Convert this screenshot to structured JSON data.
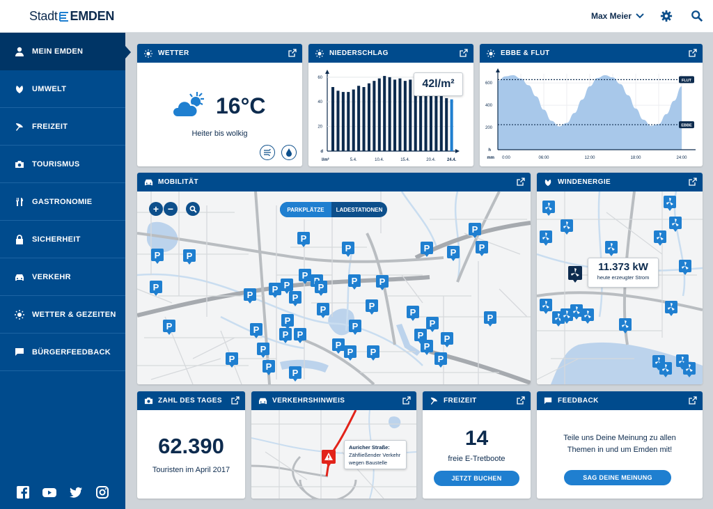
{
  "header": {
    "logo_stadt": "Stadt",
    "logo_emden": "EMDEN",
    "user_name": "Max Meier"
  },
  "sidebar": {
    "items": [
      {
        "label": "MEIN EMDEN",
        "icon": "person-icon",
        "active": true
      },
      {
        "label": "UMWELT",
        "icon": "leaf-icon"
      },
      {
        "label": "FREIZEIT",
        "icon": "leisure-icon"
      },
      {
        "label": "TOURISMUS",
        "icon": "camera-icon"
      },
      {
        "label": "GASTRONOMIE",
        "icon": "cutlery-icon"
      },
      {
        "label": "SICHERHEIT",
        "icon": "lock-icon"
      },
      {
        "label": "VERKEHR",
        "icon": "car-icon"
      },
      {
        "label": "WETTER & GEZEITEN",
        "icon": "sun-icon"
      },
      {
        "label": "BÜRGERFEEDBACK",
        "icon": "chat-icon"
      }
    ],
    "social": [
      "facebook-icon",
      "youtube-icon",
      "twitter-icon",
      "instagram-icon"
    ]
  },
  "weather": {
    "title": "WETTER",
    "temp": "16°C",
    "desc": "Heiter bis wolkig"
  },
  "precip": {
    "title": "NIEDERSCHLAG",
    "callout": "42l/m²",
    "ylabel": "l/m²"
  },
  "tides": {
    "title": "EBBE & FLUT",
    "flut": "FLUT",
    "ebbe": "EBBE",
    "ylabel": "h",
    "xlabel": "mm"
  },
  "mobility": {
    "title": "MOBILITÄT",
    "tab_parking": "PARKPLÄTZE",
    "tab_charging": "LADESTATIONEN",
    "zoom_in": "+",
    "zoom_out": "−"
  },
  "wind": {
    "title": "WINDENERGIE",
    "value": "11.373 kW",
    "caption": "heute erzeugter Strom"
  },
  "number": {
    "title": "ZAHL DES TAGES",
    "value": "62.390",
    "caption": "Touristen im April 2017"
  },
  "traffic": {
    "title": "VERKEHRSHINWEIS",
    "street": "Auricher Straße:",
    "line1": "Zähfließender Verkehr",
    "line2": "wegen Baustelle"
  },
  "leisure": {
    "title": "FREIZEIT",
    "value": "14",
    "caption": "freie E-Tretboote",
    "button": "JETZT BUCHEN"
  },
  "feedback": {
    "title": "FEEDBACK",
    "text1": "Teile uns Deine Meinung zu allen",
    "text2": "Themen in und um Emden mit!",
    "button": "SAG DEINE MEINUNG"
  },
  "chart_data": [
    {
      "type": "bar",
      "title": "NIEDERSCHLAG",
      "ylabel": "l/m²",
      "ylim": [
        0,
        65
      ],
      "yticks": [
        20,
        40,
        60
      ],
      "xtick_labels": [
        "5.4.",
        "10.4.",
        "15.4.",
        "20.4.",
        "24.4."
      ],
      "values": [
        52,
        49,
        48,
        48,
        50,
        53,
        52,
        55,
        57,
        59,
        61,
        60,
        58,
        59,
        57,
        58,
        55,
        52,
        50,
        48,
        47,
        45,
        43,
        42
      ],
      "highlight_last": true,
      "colors": {
        "bar": "#0d2b4e",
        "highlight": "#1f7fd0"
      }
    },
    {
      "type": "area",
      "title": "EBBE & FLUT",
      "ylabel": "h",
      "xlabel": "mm",
      "ylim": [
        0,
        720
      ],
      "yticks": [
        200,
        400,
        600
      ],
      "xtick_labels": [
        "0:00",
        "06:00",
        "12:00",
        "18:00",
        "24:00"
      ],
      "x": [
        0,
        1,
        2,
        3,
        4,
        5,
        6,
        7,
        8,
        9,
        10,
        11,
        12,
        13,
        14,
        15,
        16,
        17,
        18,
        19,
        20,
        21,
        22,
        23,
        24
      ],
      "values": [
        620,
        660,
        670,
        640,
        580,
        480,
        360,
        260,
        210,
        240,
        330,
        450,
        570,
        645,
        670,
        650,
        590,
        490,
        370,
        270,
        215,
        230,
        320,
        440,
        570
      ],
      "flut_level": 630,
      "ebbe_level": 225,
      "colors": {
        "area": "#a8c8ea"
      }
    }
  ]
}
